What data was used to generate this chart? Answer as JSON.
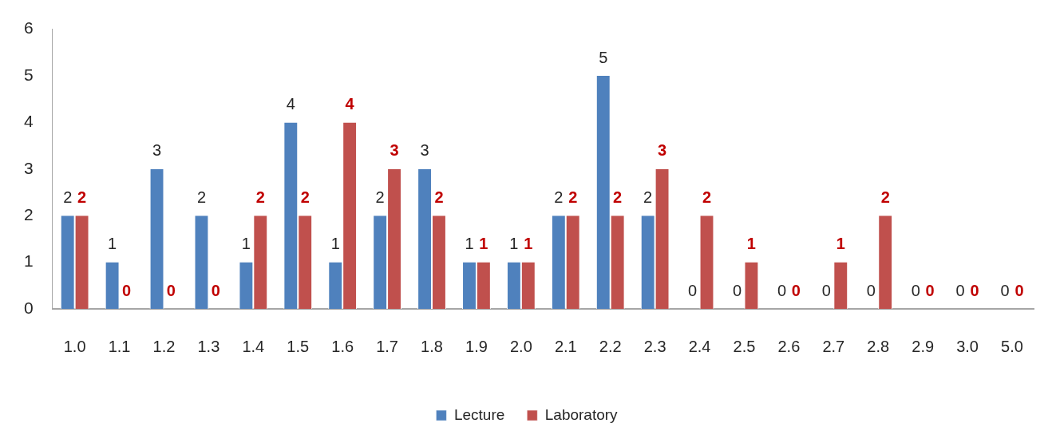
{
  "chart_data": {
    "type": "bar",
    "categories": [
      "1.0",
      "1.1",
      "1.2",
      "1.3",
      "1.4",
      "1.5",
      "1.6",
      "1.7",
      "1.8",
      "1.9",
      "2.0",
      "2.1",
      "2.2",
      "2.3",
      "2.4",
      "2.5",
      "2.6",
      "2.7",
      "2.8",
      "2.9",
      "3.0",
      "5.0"
    ],
    "series": [
      {
        "name": "Lecture",
        "color": "#4f81bd",
        "values": [
          2,
          1,
          3,
          2,
          1,
          4,
          1,
          2,
          3,
          1,
          1,
          2,
          5,
          2,
          0,
          0,
          0,
          0,
          0,
          0,
          0,
          0
        ]
      },
      {
        "name": "Laboratory",
        "color": "#c0504d",
        "values": [
          2,
          0,
          0,
          0,
          2,
          2,
          4,
          3,
          2,
          1,
          1,
          2,
          2,
          3,
          2,
          1,
          0,
          1,
          2,
          0,
          0,
          0
        ]
      }
    ],
    "ylim": [
      0,
      6
    ],
    "yticks": [
      0,
      1,
      2,
      3,
      4,
      5,
      6
    ],
    "data_labels": true,
    "legend": "bottom",
    "grid": false
  }
}
